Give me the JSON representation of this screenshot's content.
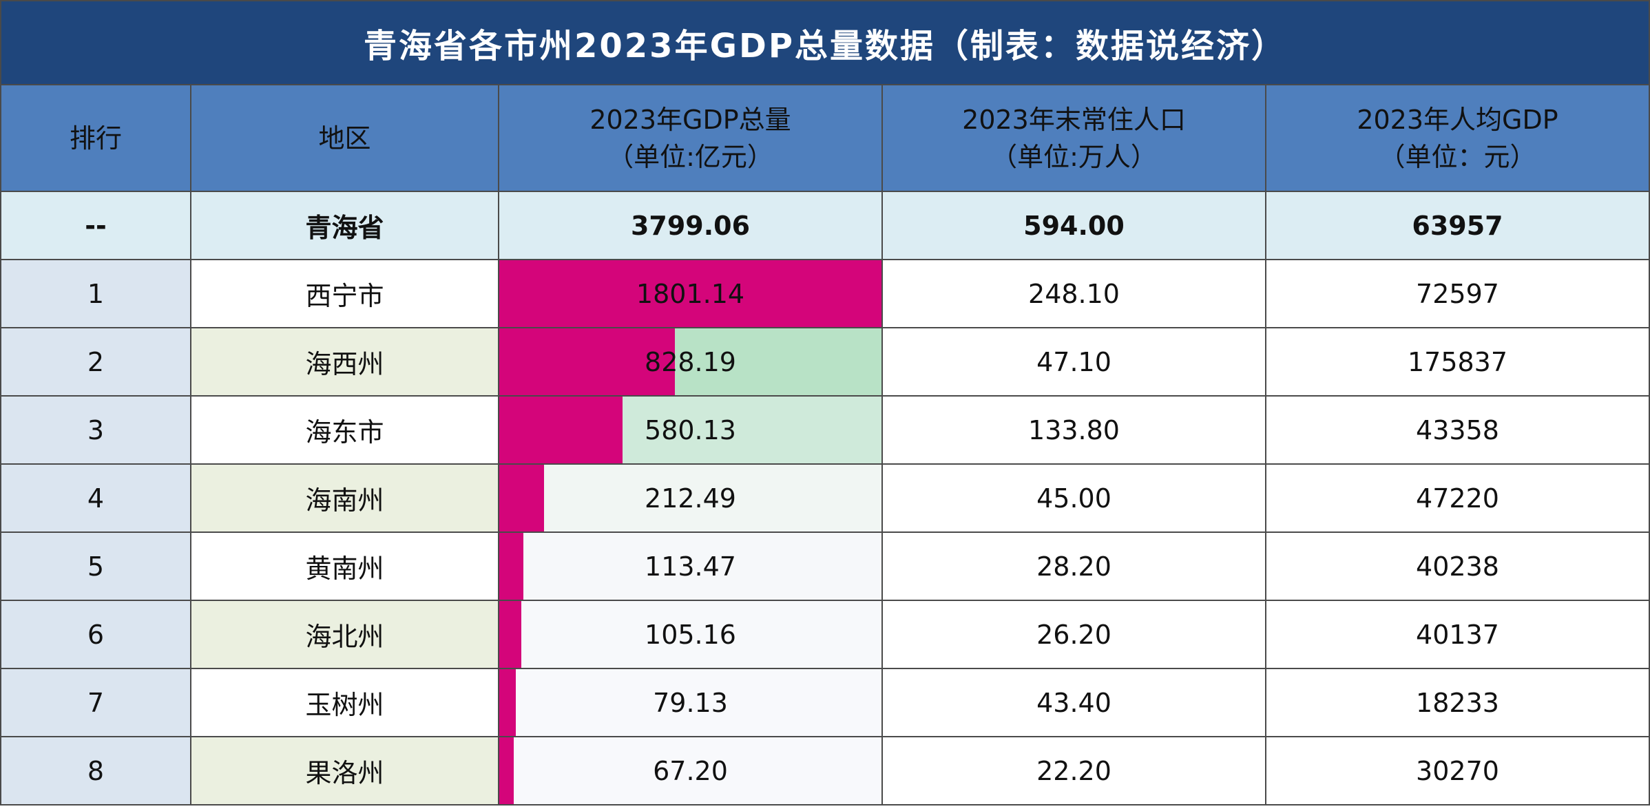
{
  "chart_data": {
    "type": "table",
    "title": "青海省各市州2023年GDP总量数据（制表：数据说经济）",
    "columns": [
      {
        "label": "排行",
        "unit": ""
      },
      {
        "label": "地区",
        "unit": ""
      },
      {
        "label": "2023年GDP总量",
        "unit": "（单位:亿元）"
      },
      {
        "label": "2023年末常住人口",
        "unit": "（单位:万人）"
      },
      {
        "label": "2023年人均GDP",
        "unit": "（单位：元）"
      }
    ],
    "total": {
      "rank": "--",
      "region": "青海省",
      "gdp": "3799.06",
      "population": "594.00",
      "gdp_per_capita": "63957"
    },
    "rows": [
      {
        "rank": "1",
        "region": "西宁市",
        "gdp": "1801.14",
        "gdp_value": 1801.14,
        "population": "248.10",
        "gdp_per_capita": "72597",
        "cell_color": "#ffffff"
      },
      {
        "rank": "2",
        "region": "海西州",
        "gdp": "828.19",
        "gdp_value": 828.19,
        "population": "47.10",
        "gdp_per_capita": "175837",
        "cell_color": "#b8e2c6"
      },
      {
        "rank": "3",
        "region": "海东市",
        "gdp": "580.13",
        "gdp_value": 580.13,
        "population": "133.80",
        "gdp_per_capita": "43358",
        "cell_color": "#cfeada"
      },
      {
        "rank": "4",
        "region": "海南州",
        "gdp": "212.49",
        "gdp_value": 212.49,
        "population": "45.00",
        "gdp_per_capita": "47220",
        "cell_color": "#f1f6f3"
      },
      {
        "rank": "5",
        "region": "黄南州",
        "gdp": "113.47",
        "gdp_value": 113.47,
        "population": "28.20",
        "gdp_per_capita": "40238",
        "cell_color": "#f6f8fa"
      },
      {
        "rank": "6",
        "region": "海北州",
        "gdp": "105.16",
        "gdp_value": 105.16,
        "population": "26.20",
        "gdp_per_capita": "40137",
        "cell_color": "#f7f9fb"
      },
      {
        "rank": "7",
        "region": "玉树州",
        "gdp": "79.13",
        "gdp_value": 79.13,
        "population": "43.40",
        "gdp_per_capita": "18233",
        "cell_color": "#f8f9fc"
      },
      {
        "rank": "8",
        "region": "果洛州",
        "gdp": "67.20",
        "gdp_value": 67.2,
        "population": "22.20",
        "gdp_per_capita": "30270",
        "cell_color": "#f8f9fc"
      }
    ],
    "bar_max": 1801.14,
    "bar_color": "#d4057a"
  }
}
